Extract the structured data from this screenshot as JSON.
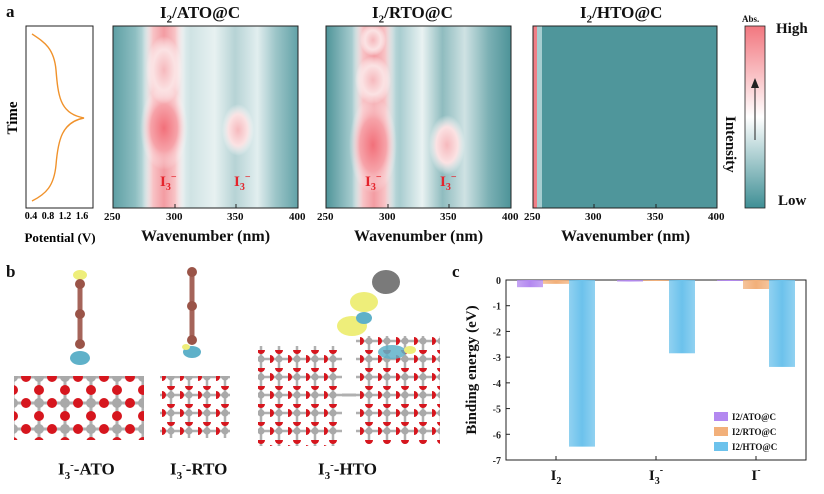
{
  "panels": {
    "a": "a",
    "b": "b",
    "c": "c"
  },
  "top_plot": {
    "ylabel": "Time",
    "xlabel": "Potential (V)",
    "xticks": [
      "0.4",
      "0.8",
      "1.2",
      "1.6"
    ],
    "line_color": "#f0922b"
  },
  "heatmaps": [
    {
      "title_main": "I",
      "title_sub": "2",
      "title_rest": "/ATO@C",
      "peaks": [
        {
          "text": "I",
          "sub": "3",
          "sup": "−"
        },
        {
          "text": "I",
          "sub": "3",
          "sup": "−"
        }
      ]
    },
    {
      "title_main": "I",
      "title_sub": "2",
      "title_rest": "/RTO@C",
      "peaks": [
        {
          "text": "I",
          "sub": "3",
          "sup": "−"
        },
        {
          "text": "I",
          "sub": "3",
          "sup": "−"
        }
      ]
    },
    {
      "title_main": "I",
      "title_sub": "2",
      "title_rest": "/HTO@C",
      "peaks": []
    }
  ],
  "wavenumber_axis": {
    "label": "Wavenumber (nm)",
    "ticks": [
      "250",
      "300",
      "350",
      "400"
    ]
  },
  "colorbar": {
    "title": "Abs.",
    "high": "High",
    "low": "Low",
    "label": "Intensity",
    "color_high": "#f2777f",
    "color_mid": "#ffffff",
    "color_low": "#3f8f95"
  },
  "molecules": [
    {
      "main": "I",
      "sub": "3",
      "sup": "-",
      "rest": "-ATO"
    },
    {
      "main": "I",
      "sub": "3",
      "sup": "-",
      "rest": "-RTO"
    },
    {
      "main": "I",
      "sub": "3",
      "sup": "-",
      "rest": "-HTO"
    }
  ],
  "chart_data": {
    "type": "bar",
    "categories": [
      "I2",
      "I3-",
      "I-"
    ],
    "category_labels": [
      {
        "main": "I",
        "sub": "2",
        "sup": ""
      },
      {
        "main": "I",
        "sub": "3",
        "sup": "-"
      },
      {
        "main": "I",
        "sub": "",
        "sup": "-"
      }
    ],
    "series": [
      {
        "name": "I2/ATO@C",
        "color": "#b388f0",
        "values": [
          -0.28,
          -0.06,
          -0.01
        ]
      },
      {
        "name": "I2/RTO@C",
        "color": "#f2b07a",
        "values": [
          -0.15,
          -0.03,
          -0.35
        ]
      },
      {
        "name": "I2/HTO@C",
        "color": "#6cc2ec",
        "values": [
          -6.48,
          -2.85,
          -3.38
        ]
      }
    ],
    "ylabel": "Binding energy (eV)",
    "ylim": [
      -7,
      0
    ],
    "yticks": [
      "0",
      "-1",
      "-2",
      "-3",
      "-4",
      "-5",
      "-6",
      "-7"
    ],
    "legend_position": "bottom-right"
  }
}
